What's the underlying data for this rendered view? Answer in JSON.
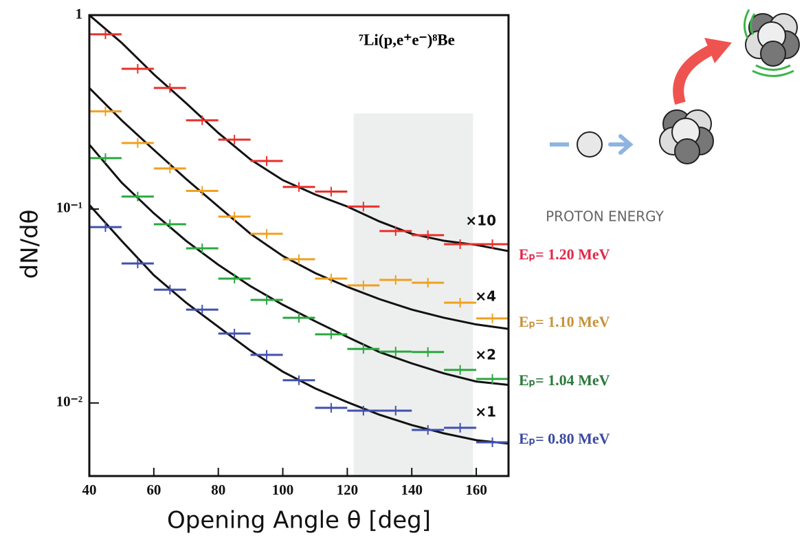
{
  "chart_data": {
    "type": "errorbar",
    "title": "⁷Li(p,e⁺e⁻)⁸Be",
    "x_label": "Opening Angle θ [deg]",
    "y_label": "dN/dθ",
    "legend_title": "PROTON ENERGY",
    "log_y": true,
    "xlim": [
      40,
      170
    ],
    "xticks": [
      40,
      60,
      80,
      100,
      120,
      140,
      160
    ],
    "ylim": [
      0.0042,
      1
    ],
    "yticks": [
      {
        "value": 1,
        "label": "1"
      },
      {
        "value": 0.1,
        "label": "10⁻¹"
      },
      {
        "value": 0.01,
        "label": "10⁻²"
      }
    ],
    "highlight_xlim": [
      122,
      159
    ],
    "x": [
      45,
      55,
      65,
      75,
      85,
      95,
      105,
      115,
      125,
      135,
      145,
      155,
      165
    ],
    "xerr": 5,
    "series": [
      {
        "name": "Eₚ= 1.20 MeV",
        "factor_label": "×10",
        "color": "#e8302a",
        "label_color": "#e0284a",
        "values": [
          0.796,
          0.529,
          0.421,
          0.287,
          0.228,
          0.177,
          0.13,
          0.123,
          0.103,
          0.077,
          0.0733,
          0.0659,
          0.0659
        ]
      },
      {
        "name": "Eₚ= 1.10 MeV",
        "factor_label": "×4",
        "color": "#f0a020",
        "label_color": "#c8923a",
        "values": [
          0.319,
          0.219,
          0.162,
          0.124,
          0.0914,
          0.0745,
          0.0551,
          0.0438,
          0.0404,
          0.0431,
          0.0417,
          0.0329,
          0.0273
        ]
      },
      {
        "name": "Eₚ= 1.04 MeV",
        "factor_label": "×2",
        "color": "#2aa840",
        "label_color": "#2a7a3a",
        "values": [
          0.183,
          0.116,
          0.0835,
          0.0627,
          0.0438,
          0.034,
          0.0275,
          0.0226,
          0.019,
          0.0184,
          0.0183,
          0.0148,
          0.0133
        ]
      },
      {
        "name": "Eₚ= 0.80 MeV",
        "factor_label": "×1",
        "color": "#4050b0",
        "label_color": "#3a4aa0",
        "values": [
          0.0807,
          0.0524,
          0.0384,
          0.0303,
          0.0228,
          0.0177,
          0.0131,
          0.00944,
          0.00913,
          0.00913,
          0.00726,
          0.00745,
          0.00627
        ]
      }
    ],
    "curves": [
      {
        "color": "#111",
        "x": [
          40,
          50,
          60,
          70,
          80,
          90,
          100,
          110,
          120,
          130,
          140,
          150,
          160,
          170
        ],
        "values": [
          1.0,
          0.721,
          0.495,
          0.352,
          0.247,
          0.18,
          0.141,
          0.119,
          0.103,
          0.0863,
          0.0745,
          0.0686,
          0.0653,
          0.0607
        ]
      },
      {
        "color": "#111",
        "x": [
          40,
          50,
          60,
          70,
          80,
          90,
          100,
          110,
          120,
          130,
          140,
          150,
          160,
          170
        ],
        "values": [
          0.421,
          0.287,
          0.202,
          0.143,
          0.103,
          0.0745,
          0.0573,
          0.0468,
          0.0397,
          0.0343,
          0.0303,
          0.0275,
          0.0254,
          0.0241
        ]
      },
      {
        "color": "#111",
        "x": [
          40,
          50,
          60,
          70,
          80,
          90,
          100,
          110,
          120,
          130,
          140,
          150,
          160,
          170
        ],
        "values": [
          0.215,
          0.137,
          0.0951,
          0.0686,
          0.0516,
          0.04,
          0.0321,
          0.0264,
          0.0219,
          0.0183,
          0.016,
          0.0142,
          0.0129,
          0.0124
        ]
      },
      {
        "color": "#111",
        "x": [
          40,
          50,
          60,
          70,
          80,
          90,
          100,
          110,
          120,
          130,
          140,
          150,
          160,
          170
        ],
        "values": [
          0.105,
          0.0686,
          0.0456,
          0.0329,
          0.0247,
          0.0186,
          0.0145,
          0.0119,
          0.0101,
          0.00869,
          0.00769,
          0.00697,
          0.00643,
          0.00617
        ]
      }
    ]
  }
}
